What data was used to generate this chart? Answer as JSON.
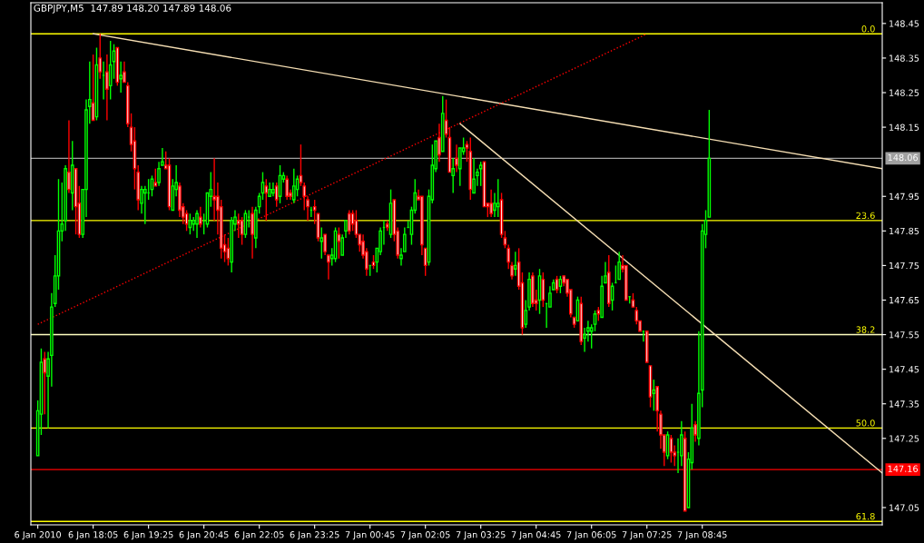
{
  "chart_data": {
    "type": "candlestick",
    "title": "GBPJPY,M5  147.89 148.20 147.89 148.06",
    "x": [
      "2010-01-06T16:45",
      "2010-01-06T16:50",
      "2010-01-06T16:55",
      "2010-01-06T17:00",
      "2010-01-06T17:05",
      "2010-01-06T17:10",
      "2010-01-06T17:15",
      "2010-01-06T17:20",
      "2010-01-06T17:25",
      "2010-01-06T17:30",
      "2010-01-06T17:35",
      "2010-01-06T17:40",
      "2010-01-06T17:45",
      "2010-01-06T17:50",
      "2010-01-06T17:55",
      "2010-01-06T18:00",
      "2010-01-06T18:05",
      "2010-01-06T18:10",
      "2010-01-06T18:15",
      "2010-01-06T18:20",
      "2010-01-06T18:25",
      "2010-01-06T18:30",
      "2010-01-06T18:35",
      "2010-01-06T18:40",
      "2010-01-06T18:45",
      "2010-01-06T18:50",
      "2010-01-06T18:55",
      "2010-01-06T19:00",
      "2010-01-06T19:05",
      "2010-01-06T19:10",
      "2010-01-06T19:15",
      "2010-01-06T19:20",
      "2010-01-06T19:25",
      "2010-01-06T19:30",
      "2010-01-06T19:35",
      "2010-01-06T19:40",
      "2010-01-06T19:45",
      "2010-01-06T19:50",
      "2010-01-06T19:55",
      "2010-01-06T20:00",
      "2010-01-06T20:05",
      "2010-01-06T20:10",
      "2010-01-06T20:15",
      "2010-01-06T20:20",
      "2010-01-06T20:25",
      "2010-01-06T20:30",
      "2010-01-06T20:35",
      "2010-01-06T20:40",
      "2010-01-06T20:45",
      "2010-01-06T20:50",
      "2010-01-06T20:55",
      "2010-01-06T21:00",
      "2010-01-06T21:05",
      "2010-01-06T21:10",
      "2010-01-06T21:15",
      "2010-01-06T21:20",
      "2010-01-06T21:25",
      "2010-01-06T21:30",
      "2010-01-06T21:35",
      "2010-01-06T21:40",
      "2010-01-06T21:45",
      "2010-01-06T21:50",
      "2010-01-06T21:55",
      "2010-01-06T22:00",
      "2010-01-06T22:05",
      "2010-01-06T22:10",
      "2010-01-06T22:15",
      "2010-01-06T22:20",
      "2010-01-06T22:25",
      "2010-01-06T22:30",
      "2010-01-06T22:35",
      "2010-01-06T22:40",
      "2010-01-06T22:45",
      "2010-01-06T22:50",
      "2010-01-06T22:55",
      "2010-01-06T23:00",
      "2010-01-06T23:05",
      "2010-01-06T23:10",
      "2010-01-06T23:15",
      "2010-01-06T23:20",
      "2010-01-06T23:25",
      "2010-01-06T23:30",
      "2010-01-06T23:35",
      "2010-01-06T23:40",
      "2010-01-06T23:45",
      "2010-01-06T23:50",
      "2010-01-06T23:55",
      "2010-01-07T00:00",
      "2010-01-07T00:05",
      "2010-01-07T00:10",
      "2010-01-07T00:15",
      "2010-01-07T00:20",
      "2010-01-07T00:25",
      "2010-01-07T00:30",
      "2010-01-07T00:35",
      "2010-01-07T00:40",
      "2010-01-07T00:45",
      "2010-01-07T00:50",
      "2010-01-07T00:55",
      "2010-01-07T01:00",
      "2010-01-07T01:05",
      "2010-01-07T01:10",
      "2010-01-07T01:15",
      "2010-01-07T01:20",
      "2010-01-07T01:25",
      "2010-01-07T01:30",
      "2010-01-07T01:35",
      "2010-01-07T01:40",
      "2010-01-07T01:45",
      "2010-01-07T01:50",
      "2010-01-07T01:55",
      "2010-01-07T02:00",
      "2010-01-07T02:05",
      "2010-01-07T02:10",
      "2010-01-07T02:15",
      "2010-01-07T02:20",
      "2010-01-07T02:25",
      "2010-01-07T02:30",
      "2010-01-07T02:35",
      "2010-01-07T02:40",
      "2010-01-07T02:45",
      "2010-01-07T02:50",
      "2010-01-07T02:55",
      "2010-01-07T03:00",
      "2010-01-07T03:05",
      "2010-01-07T03:10",
      "2010-01-07T03:15",
      "2010-01-07T03:20",
      "2010-01-07T03:25",
      "2010-01-07T03:30",
      "2010-01-07T03:35",
      "2010-01-07T03:40",
      "2010-01-07T03:45",
      "2010-01-07T03:50",
      "2010-01-07T03:55",
      "2010-01-07T04:00",
      "2010-01-07T04:05",
      "2010-01-07T04:10",
      "2010-01-07T04:15",
      "2010-01-07T04:20",
      "2010-01-07T04:25",
      "2010-01-07T04:30",
      "2010-01-07T04:35",
      "2010-01-07T04:40",
      "2010-01-07T04:45",
      "2010-01-07T04:50",
      "2010-01-07T04:55",
      "2010-01-07T05:00",
      "2010-01-07T05:05",
      "2010-01-07T05:10",
      "2010-01-07T05:15",
      "2010-01-07T05:20",
      "2010-01-07T05:25",
      "2010-01-07T05:30",
      "2010-01-07T05:35",
      "2010-01-07T05:40",
      "2010-01-07T05:45",
      "2010-01-07T05:50",
      "2010-01-07T05:55",
      "2010-01-07T06:00",
      "2010-01-07T06:05",
      "2010-01-07T06:10",
      "2010-01-07T06:15",
      "2010-01-07T06:20",
      "2010-01-07T06:25",
      "2010-01-07T06:30",
      "2010-01-07T06:35",
      "2010-01-07T06:40",
      "2010-01-07T06:45",
      "2010-01-07T06:50",
      "2010-01-07T06:55",
      "2010-01-07T07:00",
      "2010-01-07T07:05",
      "2010-01-07T07:10",
      "2010-01-07T07:15",
      "2010-01-07T07:20",
      "2010-01-07T07:25",
      "2010-01-07T07:30",
      "2010-01-07T07:35",
      "2010-01-07T07:40",
      "2010-01-07T07:45",
      "2010-01-07T07:50",
      "2010-01-07T07:55",
      "2010-01-07T08:00",
      "2010-01-07T08:05",
      "2010-01-07T08:10",
      "2010-01-07T08:15",
      "2010-01-07T08:20",
      "2010-01-07T08:25",
      "2010-01-07T08:30",
      "2010-01-07T08:35",
      "2010-01-07T08:40",
      "2010-01-07T08:45",
      "2010-01-07T08:50",
      "2010-01-07T08:55"
    ],
    "ohlc": [
      [
        147.2,
        147.36,
        147.2,
        147.33
      ],
      [
        147.32,
        147.51,
        147.26,
        147.47
      ],
      [
        147.48,
        147.5,
        147.32,
        147.44
      ],
      [
        147.43,
        147.5,
        147.28,
        147.48
      ],
      [
        147.49,
        147.67,
        147.4,
        147.63
      ],
      [
        147.64,
        147.78,
        147.63,
        147.72
      ],
      [
        147.72,
        148.0,
        147.68,
        147.85
      ],
      [
        147.85,
        147.99,
        147.82,
        147.87
      ],
      [
        147.88,
        148.04,
        147.85,
        148.03
      ],
      [
        148.02,
        148.17,
        147.96,
        147.97
      ],
      [
        147.96,
        148.11,
        147.91,
        148.04
      ],
      [
        148.03,
        148.03,
        147.84,
        147.92
      ],
      [
        147.93,
        147.98,
        147.83,
        147.84
      ],
      [
        147.84,
        147.97,
        147.83,
        147.97
      ],
      [
        147.97,
        148.23,
        147.89,
        148.2
      ],
      [
        148.21,
        148.34,
        148.16,
        148.23
      ],
      [
        148.22,
        148.36,
        148.17,
        148.17
      ],
      [
        148.18,
        148.38,
        148.17,
        148.33
      ],
      [
        148.35,
        148.42,
        148.29,
        148.31
      ],
      [
        148.3,
        148.34,
        148.23,
        148.3
      ],
      [
        148.31,
        148.36,
        148.17,
        148.26
      ],
      [
        148.27,
        148.4,
        148.23,
        148.33
      ],
      [
        148.34,
        148.39,
        148.29,
        148.37
      ],
      [
        148.38,
        148.38,
        148.27,
        148.28
      ],
      [
        148.29,
        148.34,
        148.25,
        148.3
      ],
      [
        148.31,
        148.34,
        148.28,
        148.28
      ],
      [
        148.27,
        148.28,
        148.15,
        148.16
      ],
      [
        148.15,
        148.19,
        148.08,
        148.1
      ],
      [
        148.11,
        148.15,
        147.97,
        148.03
      ],
      [
        148.02,
        148.04,
        147.91,
        147.94
      ],
      [
        147.93,
        147.98,
        147.9,
        147.97
      ],
      [
        147.96,
        147.98,
        147.87,
        147.97
      ],
      [
        147.96,
        148.0,
        147.94,
        147.96
      ],
      [
        147.97,
        148.01,
        147.95,
        148.0
      ],
      [
        147.99,
        148.03,
        147.98,
        147.98
      ],
      [
        147.99,
        148.05,
        147.98,
        148.03
      ],
      [
        148.04,
        148.09,
        148.04,
        148.05
      ],
      [
        148.04,
        148.08,
        148.03,
        148.03
      ],
      [
        148.04,
        148.06,
        147.91,
        147.92
      ],
      [
        147.91,
        148.0,
        147.91,
        147.98
      ],
      [
        147.97,
        148.04,
        147.95,
        147.99
      ],
      [
        147.98,
        147.99,
        147.89,
        147.91
      ],
      [
        147.92,
        147.93,
        147.87,
        147.89
      ],
      [
        147.9,
        147.91,
        147.85,
        147.87
      ],
      [
        147.86,
        147.9,
        147.84,
        147.88
      ],
      [
        147.87,
        147.89,
        147.85,
        147.88
      ],
      [
        147.87,
        147.91,
        147.83,
        147.9
      ],
      [
        147.89,
        147.92,
        147.86,
        147.87
      ],
      [
        147.88,
        147.9,
        147.84,
        147.88
      ],
      [
        147.87,
        147.96,
        147.86,
        147.96
      ],
      [
        147.95,
        148.02,
        147.92,
        147.97
      ],
      [
        147.95,
        148.06,
        147.88,
        147.94
      ],
      [
        147.95,
        147.99,
        147.84,
        147.91
      ],
      [
        147.92,
        147.94,
        147.77,
        147.8
      ],
      [
        147.81,
        147.84,
        147.76,
        147.79
      ],
      [
        147.8,
        147.83,
        147.75,
        147.77
      ],
      [
        147.76,
        147.89,
        147.73,
        147.88
      ],
      [
        147.87,
        147.91,
        147.85,
        147.89
      ],
      [
        147.88,
        147.9,
        147.83,
        147.87
      ],
      [
        147.88,
        147.89,
        147.81,
        147.84
      ],
      [
        147.84,
        147.91,
        147.83,
        147.9
      ],
      [
        147.89,
        147.91,
        147.86,
        147.89
      ],
      [
        147.9,
        147.92,
        147.77,
        147.84
      ],
      [
        147.83,
        147.92,
        147.8,
        147.91
      ],
      [
        147.92,
        147.96,
        147.9,
        147.95
      ],
      [
        147.96,
        148.02,
        147.94,
        147.99
      ],
      [
        147.98,
        148.0,
        147.88,
        147.96
      ],
      [
        147.95,
        147.99,
        147.95,
        147.97
      ],
      [
        147.96,
        147.99,
        147.95,
        147.97
      ],
      [
        147.98,
        147.99,
        147.92,
        147.94
      ],
      [
        147.95,
        148.04,
        147.93,
        148.01
      ],
      [
        148.0,
        148.02,
        147.99,
        148.01
      ],
      [
        148.0,
        148.01,
        147.94,
        147.95
      ],
      [
        147.96,
        147.97,
        147.94,
        147.95
      ],
      [
        147.94,
        148.03,
        147.93,
        147.98
      ],
      [
        147.97,
        148.01,
        147.95,
        148.0
      ],
      [
        148.01,
        148.1,
        147.98,
        147.99
      ],
      [
        147.98,
        147.99,
        147.91,
        147.95
      ],
      [
        147.94,
        147.95,
        147.88,
        147.92
      ],
      [
        147.91,
        147.92,
        147.89,
        147.91
      ],
      [
        147.92,
        147.94,
        147.87,
        147.91
      ],
      [
        147.9,
        147.9,
        147.82,
        147.83
      ],
      [
        147.82,
        147.86,
        147.77,
        147.83
      ],
      [
        147.84,
        147.84,
        147.78,
        147.79
      ],
      [
        147.78,
        147.78,
        147.71,
        147.76
      ],
      [
        147.77,
        147.8,
        147.75,
        147.78
      ],
      [
        147.77,
        147.86,
        147.76,
        147.85
      ],
      [
        147.84,
        147.86,
        147.77,
        147.82
      ],
      [
        147.78,
        147.84,
        147.78,
        147.83
      ],
      [
        147.85,
        147.88,
        147.83,
        147.88
      ],
      [
        147.9,
        147.91,
        147.84,
        147.85
      ],
      [
        147.9,
        147.91,
        147.85,
        147.87
      ],
      [
        147.88,
        147.91,
        147.83,
        147.84
      ],
      [
        147.84,
        147.84,
        147.79,
        147.81
      ],
      [
        147.82,
        147.84,
        147.77,
        147.78
      ],
      [
        147.79,
        147.8,
        147.72,
        147.74
      ],
      [
        147.75,
        147.75,
        147.72,
        147.75
      ],
      [
        147.76,
        147.78,
        147.74,
        147.75
      ],
      [
        147.76,
        147.8,
        147.73,
        147.8
      ],
      [
        147.79,
        147.86,
        147.78,
        147.85
      ],
      [
        147.86,
        147.88,
        147.81,
        147.86
      ],
      [
        147.87,
        147.88,
        147.85,
        147.86
      ],
      [
        147.84,
        147.97,
        147.83,
        147.93
      ],
      [
        147.94,
        147.94,
        147.82,
        147.84
      ],
      [
        147.85,
        147.86,
        147.77,
        147.78
      ],
      [
        147.77,
        147.8,
        147.75,
        147.78
      ],
      [
        147.79,
        147.86,
        147.79,
        147.84
      ],
      [
        147.86,
        147.88,
        147.86,
        147.86
      ],
      [
        147.84,
        147.92,
        147.81,
        147.91
      ],
      [
        147.91,
        148.0,
        147.9,
        147.96
      ],
      [
        147.95,
        147.97,
        147.94,
        147.94
      ],
      [
        147.95,
        147.95,
        147.78,
        147.81
      ],
      [
        147.8,
        147.8,
        147.72,
        147.75
      ],
      [
        147.76,
        147.97,
        147.75,
        147.95
      ],
      [
        147.94,
        148.1,
        147.93,
        148.04
      ],
      [
        148.03,
        148.11,
        148.02,
        148.11
      ],
      [
        148.12,
        148.16,
        148.05,
        148.07
      ],
      [
        148.08,
        148.24,
        148.08,
        148.19
      ],
      [
        148.17,
        148.23,
        148.12,
        148.13
      ],
      [
        148.12,
        148.15,
        148.02,
        148.02
      ],
      [
        148.01,
        148.06,
        147.96,
        148.03
      ],
      [
        148.06,
        148.1,
        148.02,
        148.04
      ],
      [
        148.03,
        148.09,
        147.98,
        148.09
      ],
      [
        148.08,
        148.12,
        148.07,
        148.09
      ],
      [
        148.1,
        148.11,
        148.05,
        148.09
      ],
      [
        148.08,
        148.12,
        147.94,
        147.97
      ],
      [
        147.96,
        148.06,
        147.96,
        148.0
      ],
      [
        148.01,
        148.03,
        147.98,
        148.02
      ],
      [
        148.03,
        148.05,
        147.98,
        148.04
      ],
      [
        148.05,
        148.05,
        147.92,
        147.92
      ],
      [
        147.93,
        147.93,
        147.89,
        147.92
      ],
      [
        147.93,
        147.97,
        147.89,
        147.9
      ],
      [
        147.91,
        147.96,
        147.89,
        147.93
      ],
      [
        147.92,
        148.0,
        147.89,
        147.93
      ],
      [
        147.94,
        147.96,
        147.83,
        147.84
      ],
      [
        147.83,
        147.85,
        147.8,
        147.81
      ],
      [
        147.8,
        147.81,
        147.74,
        147.76
      ],
      [
        147.75,
        147.76,
        147.71,
        147.72
      ],
      [
        147.74,
        147.79,
        147.72,
        147.75
      ],
      [
        147.76,
        147.8,
        147.68,
        147.69
      ],
      [
        147.7,
        147.73,
        147.55,
        147.57
      ],
      [
        147.58,
        147.65,
        147.57,
        147.62
      ],
      [
        147.63,
        147.73,
        147.62,
        147.71
      ],
      [
        147.72,
        147.73,
        147.63,
        147.64
      ],
      [
        147.65,
        147.68,
        147.62,
        147.64
      ],
      [
        147.65,
        147.74,
        147.61,
        147.72
      ],
      [
        147.71,
        147.73,
        147.63,
        147.65
      ],
      [
        147.64,
        147.64,
        147.57,
        147.64
      ],
      [
        147.63,
        147.69,
        147.63,
        147.67
      ],
      [
        147.68,
        147.71,
        147.68,
        147.7
      ],
      [
        147.71,
        147.72,
        147.67,
        147.68
      ],
      [
        147.69,
        147.72,
        147.67,
        147.71
      ],
      [
        147.72,
        147.72,
        147.69,
        147.7
      ],
      [
        147.71,
        147.71,
        147.66,
        147.67
      ],
      [
        147.68,
        147.68,
        147.6,
        147.61
      ],
      [
        147.6,
        147.6,
        147.57,
        147.58
      ],
      [
        147.59,
        147.66,
        147.59,
        147.65
      ],
      [
        147.64,
        147.66,
        147.52,
        147.53
      ],
      [
        147.54,
        147.57,
        147.5,
        147.55
      ],
      [
        147.56,
        147.59,
        147.53,
        147.57
      ],
      [
        147.56,
        147.58,
        147.51,
        147.57
      ],
      [
        147.58,
        147.62,
        147.56,
        147.61
      ],
      [
        147.62,
        147.63,
        147.59,
        147.61
      ],
      [
        147.6,
        147.72,
        147.6,
        147.69
      ],
      [
        147.7,
        147.76,
        147.7,
        147.72
      ],
      [
        147.73,
        147.78,
        147.63,
        147.64
      ],
      [
        147.65,
        147.7,
        147.62,
        147.69
      ],
      [
        147.7,
        147.75,
        147.7,
        147.7
      ],
      [
        147.71,
        147.79,
        147.71,
        147.76
      ],
      [
        147.75,
        147.78,
        147.73,
        147.74
      ],
      [
        147.75,
        147.75,
        147.65,
        147.65
      ],
      [
        147.66,
        147.66,
        147.64,
        147.66
      ],
      [
        147.65,
        147.67,
        147.63,
        147.63
      ],
      [
        147.62,
        147.63,
        147.58,
        147.59
      ],
      [
        147.59,
        147.59,
        147.56,
        147.56
      ],
      [
        147.56,
        147.56,
        147.53,
        147.56
      ],
      [
        147.56,
        147.56,
        147.47,
        147.47
      ],
      [
        147.46,
        147.46,
        147.34,
        147.37
      ],
      [
        147.38,
        147.42,
        147.33,
        147.39
      ],
      [
        147.4,
        147.4,
        147.27,
        147.33
      ],
      [
        147.32,
        147.33,
        147.22,
        147.26
      ],
      [
        147.26,
        147.26,
        147.17,
        147.21
      ],
      [
        147.2,
        147.27,
        147.19,
        147.26
      ],
      [
        147.25,
        147.26,
        147.18,
        147.21
      ],
      [
        147.21,
        147.23,
        147.17,
        147.2
      ],
      [
        147.21,
        147.25,
        147.15,
        147.21
      ],
      [
        147.2,
        147.3,
        147.17,
        147.26
      ],
      [
        147.25,
        147.27,
        147.04,
        147.04
      ],
      [
        147.05,
        147.21,
        147.05,
        147.19
      ],
      [
        147.18,
        147.35,
        147.16,
        147.28
      ],
      [
        147.29,
        147.3,
        147.24,
        147.26
      ],
      [
        147.25,
        147.56,
        147.23,
        147.38
      ],
      [
        147.39,
        147.87,
        147.34,
        147.85
      ],
      [
        147.84,
        147.91,
        147.8,
        147.88
      ],
      [
        147.89,
        148.2,
        147.89,
        148.06
      ]
    ],
    "colors": [
      "#00ff00",
      "#00ff00",
      "#ff0000",
      "#00ff00",
      "#00ff00",
      "#00ff00",
      "#00ff00",
      "#00ff00",
      "#00ff00",
      "#ff0000",
      "#00ff00",
      "#ff0000",
      "#ff0000",
      "#00ff00",
      "#00ff00",
      "#00ff00",
      "#ff0000",
      "#00ff00",
      "#ff0000",
      "#00ff00",
      "#ff0000",
      "#00ff00",
      "#00ff00",
      "#ff0000",
      "#00ff00",
      "#ff0000",
      "#ff0000",
      "#ff0000",
      "#ff0000",
      "#ff0000",
      "#00ff00",
      "#00ff00",
      "#00ff00",
      "#00ff00",
      "#ff0000",
      "#00ff00",
      "#00ff00",
      "#ff0000",
      "#ff0000",
      "#00ff00",
      "#00ff00",
      "#ff0000",
      "#ff0000",
      "#ff0000",
      "#00ff00",
      "#00ff00",
      "#00ff00",
      "#ff0000",
      "#00ff00",
      "#00ff00",
      "#00ff00",
      "#ff0000",
      "#ff0000",
      "#ff0000",
      "#ff0000",
      "#ff0000",
      "#00ff00",
      "#00ff00",
      "#ff0000",
      "#ff0000",
      "#00ff00",
      "#00ff00",
      "#ff0000",
      "#00ff00",
      "#00ff00",
      "#00ff00",
      "#ff0000",
      "#00ff00",
      "#00ff00",
      "#ff0000",
      "#00ff00",
      "#00ff00",
      "#ff0000",
      "#ff0000",
      "#00ff00",
      "#00ff00",
      "#ff0000",
      "#ff0000",
      "#ff0000",
      "#00ff00",
      "#ff0000",
      "#ff0000",
      "#00ff00",
      "#ff0000",
      "#ff0000",
      "#00ff00",
      "#00ff00",
      "#ff0000",
      "#00ff00",
      "#00ff00",
      "#ff0000",
      "#ff0000",
      "#ff0000",
      "#ff0000",
      "#ff0000",
      "#ff0000",
      "#00ff00",
      "#ff0000",
      "#00ff00",
      "#00ff00",
      "#00ff00",
      "#ff0000",
      "#00ff00",
      "#ff0000",
      "#ff0000",
      "#00ff00",
      "#00ff00",
      "#00ff00",
      "#00ff00",
      "#00ff00",
      "#ff0000",
      "#ff0000",
      "#ff0000",
      "#00ff00",
      "#00ff00",
      "#00ff00",
      "#ff0000",
      "#00ff00",
      "#ff0000",
      "#ff0000",
      "#00ff00",
      "#ff0000",
      "#00ff00",
      "#00ff00",
      "#ff0000",
      "#ff0000",
      "#00ff00",
      "#00ff00",
      "#00ff00",
      "#ff0000",
      "#ff0000",
      "#ff0000",
      "#00ff00",
      "#00ff00",
      "#ff0000",
      "#ff0000",
      "#ff0000",
      "#ff0000",
      "#00ff00",
      "#ff0000",
      "#ff0000",
      "#00ff00",
      "#00ff00",
      "#ff0000",
      "#ff0000",
      "#00ff00",
      "#ff0000",
      "#00ff00",
      "#00ff00",
      "#00ff00",
      "#ff0000",
      "#00ff00",
      "#ff0000",
      "#ff0000",
      "#ff0000",
      "#ff0000",
      "#00ff00",
      "#ff0000",
      "#00ff00",
      "#00ff00",
      "#00ff00",
      "#00ff00",
      "#ff0000",
      "#00ff00",
      "#00ff00",
      "#ff0000",
      "#00ff00",
      "#00ff00",
      "#00ff00",
      "#ff0000",
      "#ff0000",
      "#00ff00",
      "#ff0000",
      "#ff0000",
      "#ff0000",
      "#00ff00",
      "#ff0000",
      "#ff0000",
      "#00ff00",
      "#ff0000",
      "#ff0000",
      "#ff0000",
      "#00ff00",
      "#ff0000",
      "#ff0000",
      "#00ff00",
      "#00ff00",
      "#ff0000",
      "#00ff00",
      "#00ff00",
      "#ff0000",
      "#00ff00",
      "#00ff00",
      "#00ff00",
      "#00ff00"
    ],
    "series": [
      {
        "type": "line",
        "color": "#f5deb3",
        "line_style": "solid",
        "x": [
          "2010-01-06T18:05",
          "2010-01-07T13:05"
        ],
        "values": [
          148.42,
          148.03
        ]
      },
      {
        "type": "line",
        "color": "#ff0000",
        "line_style": "dotted",
        "x": [
          "2010-01-06T16:45",
          "2010-01-07T07:25"
        ],
        "values": [
          147.58,
          148.42
        ]
      },
      {
        "type": "line",
        "color": "#f5deb3",
        "line_style": "solid",
        "x": [
          "2010-01-07T02:55",
          "2010-01-07T13:05"
        ],
        "values": [
          148.16,
          147.15
        ]
      }
    ],
    "ref_lines": [
      {
        "axis": "y",
        "value": 148.42,
        "color": "#ffff00"
      },
      {
        "axis": "y",
        "value": 147.88,
        "color": "#ffff00"
      },
      {
        "axis": "y",
        "value": 147.55,
        "color": "#ffffc0"
      },
      {
        "axis": "y",
        "value": 147.28,
        "color": "#ffff00"
      },
      {
        "axis": "y",
        "value": 147.01,
        "color": "#ffff00"
      },
      {
        "axis": "y",
        "value": 148.06,
        "label": "148.06",
        "color": "#a0a0a0"
      },
      {
        "axis": "y",
        "value": 147.16,
        "label": "147.16",
        "color": "#ff0000"
      }
    ],
    "annotations": [
      {
        "text": "0.0",
        "x": "2010-01-07T12:55",
        "y": 148.42
      },
      {
        "text": "23.6",
        "x": "2010-01-07T12:55",
        "y": 147.88
      },
      {
        "text": "38.2",
        "x": "2010-01-07T12:55",
        "y": 147.55
      },
      {
        "text": "50.0",
        "x": "2010-01-07T12:55",
        "y": 147.28
      },
      {
        "text": "61.8",
        "x": "2010-01-07T12:55",
        "y": 147.01
      }
    ],
    "xlim": [
      "2010-01-06T16:35",
      "2010-01-07T13:05"
    ],
    "xticks": [
      {
        "value": "2010-01-06T16:45",
        "label": "6 Jan 2010"
      },
      {
        "value": "2010-01-06T18:05",
        "label": "6 Jan 18:05"
      },
      {
        "value": "2010-01-06T19:25",
        "label": "6 Jan 19:25"
      },
      {
        "value": "2010-01-06T20:45",
        "label": "6 Jan 20:45"
      },
      {
        "value": "2010-01-06T22:05",
        "label": "6 Jan 22:05"
      },
      {
        "value": "2010-01-06T23:25",
        "label": "6 Jan 23:25"
      },
      {
        "value": "2010-01-07T00:45",
        "label": "7 Jan 00:45"
      },
      {
        "value": "2010-01-07T02:05",
        "label": "7 Jan 02:05"
      },
      {
        "value": "2010-01-07T03:25",
        "label": "7 Jan 03:25"
      },
      {
        "value": "2010-01-07T04:45",
        "label": "7 Jan 04:45"
      },
      {
        "value": "2010-01-07T06:05",
        "label": "7 Jan 06:05"
      },
      {
        "value": "2010-01-07T07:25",
        "label": "7 Jan 07:25"
      },
      {
        "value": "2010-01-07T08:45",
        "label": "7 Jan 08:45"
      }
    ],
    "ylim": [
      147.0,
      148.51
    ],
    "yticks": [
      148.45,
      148.35,
      148.25,
      148.15,
      147.95,
      147.85,
      147.75,
      147.65,
      147.55,
      147.45,
      147.35,
      147.25,
      147.05
    ]
  }
}
